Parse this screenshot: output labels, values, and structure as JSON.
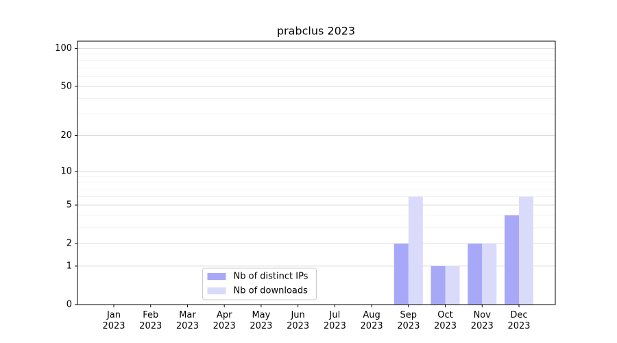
{
  "chart_data": {
    "type": "bar",
    "title": "prabclus 2023",
    "categories": [
      "Jan\n2023",
      "Feb\n2023",
      "Mar\n2023",
      "Apr\n2023",
      "May\n2023",
      "Jun\n2023",
      "Jul\n2023",
      "Aug\n2023",
      "Sep\n2023",
      "Oct\n2023",
      "Nov\n2023",
      "Dec\n2023"
    ],
    "series": [
      {
        "name": "Nb of distinct IPs",
        "color": "#a8a8f8",
        "values": [
          0,
          0,
          0,
          0,
          0,
          0,
          0,
          0,
          2,
          1,
          2,
          4
        ]
      },
      {
        "name": "Nb of downloads",
        "color": "#dadafb",
        "values": [
          0,
          0,
          0,
          0,
          0,
          0,
          0,
          0,
          6,
          1,
          2,
          6
        ]
      }
    ],
    "yscale": "log1p",
    "ylim": [
      0,
      114
    ],
    "yticks": [
      0,
      1,
      2,
      5,
      10,
      20,
      50,
      100
    ],
    "minor_yticks": [
      3,
      4,
      6,
      7,
      8,
      9,
      30,
      40,
      60,
      70,
      80,
      90
    ],
    "grid": true,
    "legend": "lower center"
  }
}
